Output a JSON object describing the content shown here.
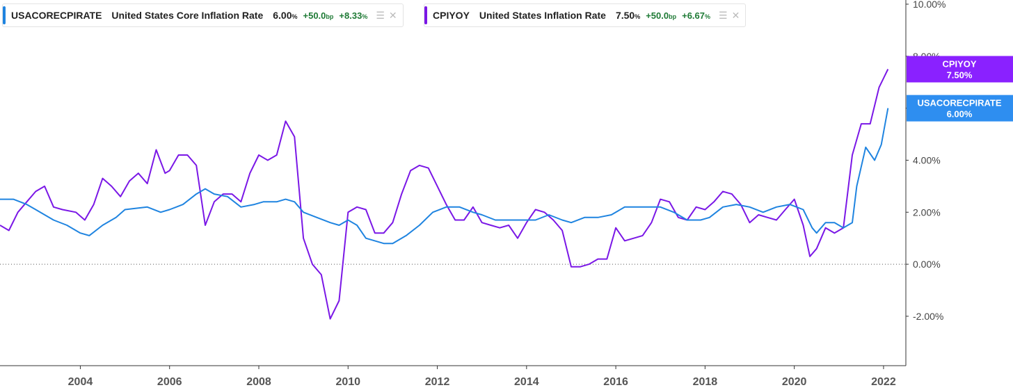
{
  "legend": [
    {
      "ticker": "USACORECPIRATE",
      "name": "United States Core Inflation Rate",
      "value": "6.00",
      "value_unit": "%",
      "change_bp": "+50.0",
      "change_bp_unit": "bp",
      "change_pct": "+8.33",
      "change_pct_unit": "%",
      "color": "#1f84e0"
    },
    {
      "ticker": "CPIYOY",
      "name": "United States Inflation Rate",
      "value": "7.50",
      "value_unit": "%",
      "change_bp": "+50.0",
      "change_bp_unit": "bp",
      "change_pct": "+6.67",
      "change_pct_unit": "%",
      "color": "#7a17e6"
    }
  ],
  "flags": [
    {
      "label": "CPIYOY",
      "value": "7.50%",
      "color": "#8a21ff"
    },
    {
      "label": "USACORECPIRATE",
      "value": "6.00%",
      "color": "#2e8ef0"
    }
  ],
  "chart_data": {
    "type": "line",
    "x_label": "",
    "y_label": "",
    "x_range": [
      2002.2,
      2022.5
    ],
    "y_range": [
      -3.9,
      10.0
    ],
    "y_ticks": [
      {
        "value": 10,
        "label": "10.00%"
      },
      {
        "value": 8,
        "label": "8.00%"
      },
      {
        "value": 6,
        "label": "6.00%"
      },
      {
        "value": 4,
        "label": "4.00%"
      },
      {
        "value": 2,
        "label": "2.00%"
      },
      {
        "value": 0,
        "label": "0.00%"
      },
      {
        "value": -2,
        "label": "-2.00%"
      }
    ],
    "x_ticks": [
      "2004",
      "2006",
      "2008",
      "2010",
      "2012",
      "2014",
      "2016",
      "2018",
      "2020",
      "2022"
    ],
    "zero_line": true,
    "series": [
      {
        "name": "USACORECPIRATE",
        "color": "#1f84e0",
        "points": [
          [
            2002.2,
            2.5
          ],
          [
            2002.5,
            2.5
          ],
          [
            2002.8,
            2.3
          ],
          [
            2003.0,
            2.1
          ],
          [
            2003.4,
            1.7
          ],
          [
            2003.7,
            1.5
          ],
          [
            2004.0,
            1.2
          ],
          [
            2004.2,
            1.1
          ],
          [
            2004.5,
            1.5
          ],
          [
            2004.8,
            1.8
          ],
          [
            2005.0,
            2.1
          ],
          [
            2005.5,
            2.2
          ],
          [
            2005.8,
            2.0
          ],
          [
            2006.0,
            2.1
          ],
          [
            2006.3,
            2.3
          ],
          [
            2006.6,
            2.7
          ],
          [
            2006.8,
            2.9
          ],
          [
            2007.0,
            2.7
          ],
          [
            2007.3,
            2.6
          ],
          [
            2007.6,
            2.2
          ],
          [
            2007.9,
            2.3
          ],
          [
            2008.1,
            2.4
          ],
          [
            2008.4,
            2.4
          ],
          [
            2008.6,
            2.5
          ],
          [
            2008.8,
            2.4
          ],
          [
            2009.0,
            2.0
          ],
          [
            2009.3,
            1.8
          ],
          [
            2009.6,
            1.6
          ],
          [
            2009.8,
            1.5
          ],
          [
            2010.0,
            1.7
          ],
          [
            2010.2,
            1.5
          ],
          [
            2010.4,
            1.0
          ],
          [
            2010.8,
            0.8
          ],
          [
            2011.0,
            0.8
          ],
          [
            2011.3,
            1.1
          ],
          [
            2011.6,
            1.5
          ],
          [
            2011.9,
            2.0
          ],
          [
            2012.2,
            2.2
          ],
          [
            2012.5,
            2.2
          ],
          [
            2012.8,
            2.0
          ],
          [
            2013.0,
            1.9
          ],
          [
            2013.3,
            1.7
          ],
          [
            2013.6,
            1.7
          ],
          [
            2013.9,
            1.7
          ],
          [
            2014.2,
            1.7
          ],
          [
            2014.5,
            1.9
          ],
          [
            2014.8,
            1.7
          ],
          [
            2015.0,
            1.6
          ],
          [
            2015.3,
            1.8
          ],
          [
            2015.6,
            1.8
          ],
          [
            2015.9,
            1.9
          ],
          [
            2016.2,
            2.2
          ],
          [
            2016.5,
            2.2
          ],
          [
            2016.8,
            2.2
          ],
          [
            2017.0,
            2.2
          ],
          [
            2017.3,
            2.0
          ],
          [
            2017.6,
            1.7
          ],
          [
            2017.9,
            1.7
          ],
          [
            2018.1,
            1.8
          ],
          [
            2018.4,
            2.2
          ],
          [
            2018.7,
            2.3
          ],
          [
            2019.0,
            2.2
          ],
          [
            2019.3,
            2.0
          ],
          [
            2019.6,
            2.2
          ],
          [
            2019.9,
            2.3
          ],
          [
            2020.2,
            2.1
          ],
          [
            2020.4,
            1.4
          ],
          [
            2020.5,
            1.2
          ],
          [
            2020.7,
            1.6
          ],
          [
            2020.9,
            1.6
          ],
          [
            2021.1,
            1.4
          ],
          [
            2021.3,
            1.6
          ],
          [
            2021.4,
            3.0
          ],
          [
            2021.6,
            4.5
          ],
          [
            2021.8,
            4.0
          ],
          [
            2021.95,
            4.6
          ],
          [
            2022.1,
            6.0
          ]
        ]
      },
      {
        "name": "CPIYOY",
        "color": "#7a17e6",
        "points": [
          [
            2002.2,
            1.5
          ],
          [
            2002.4,
            1.3
          ],
          [
            2002.6,
            2.0
          ],
          [
            2002.8,
            2.4
          ],
          [
            2003.0,
            2.8
          ],
          [
            2003.2,
            3.0
          ],
          [
            2003.4,
            2.2
          ],
          [
            2003.6,
            2.1
          ],
          [
            2003.9,
            2.0
          ],
          [
            2004.1,
            1.7
          ],
          [
            2004.3,
            2.3
          ],
          [
            2004.5,
            3.3
          ],
          [
            2004.7,
            3.0
          ],
          [
            2004.9,
            2.6
          ],
          [
            2005.1,
            3.2
          ],
          [
            2005.3,
            3.5
          ],
          [
            2005.5,
            3.1
          ],
          [
            2005.7,
            4.4
          ],
          [
            2005.9,
            3.5
          ],
          [
            2006.0,
            3.6
          ],
          [
            2006.2,
            4.2
          ],
          [
            2006.4,
            4.2
          ],
          [
            2006.6,
            3.8
          ],
          [
            2006.8,
            1.5
          ],
          [
            2007.0,
            2.4
          ],
          [
            2007.2,
            2.7
          ],
          [
            2007.4,
            2.7
          ],
          [
            2007.6,
            2.4
          ],
          [
            2007.8,
            3.5
          ],
          [
            2008.0,
            4.2
          ],
          [
            2008.2,
            4.0
          ],
          [
            2008.4,
            4.2
          ],
          [
            2008.6,
            5.5
          ],
          [
            2008.8,
            4.9
          ],
          [
            2009.0,
            1.0
          ],
          [
            2009.2,
            0.0
          ],
          [
            2009.4,
            -0.4
          ],
          [
            2009.6,
            -2.1
          ],
          [
            2009.8,
            -1.4
          ],
          [
            2010.0,
            2.0
          ],
          [
            2010.2,
            2.2
          ],
          [
            2010.4,
            2.1
          ],
          [
            2010.6,
            1.2
          ],
          [
            2010.8,
            1.2
          ],
          [
            2011.0,
            1.6
          ],
          [
            2011.2,
            2.7
          ],
          [
            2011.4,
            3.6
          ],
          [
            2011.6,
            3.8
          ],
          [
            2011.8,
            3.7
          ],
          [
            2012.0,
            3.0
          ],
          [
            2012.2,
            2.3
          ],
          [
            2012.4,
            1.7
          ],
          [
            2012.6,
            1.7
          ],
          [
            2012.8,
            2.2
          ],
          [
            2013.0,
            1.6
          ],
          [
            2013.2,
            1.5
          ],
          [
            2013.4,
            1.4
          ],
          [
            2013.6,
            1.5
          ],
          [
            2013.8,
            1.0
          ],
          [
            2014.0,
            1.6
          ],
          [
            2014.2,
            2.1
          ],
          [
            2014.4,
            2.0
          ],
          [
            2014.6,
            1.7
          ],
          [
            2014.8,
            1.3
          ],
          [
            2015.0,
            -0.1
          ],
          [
            2015.2,
            -0.1
          ],
          [
            2015.4,
            0.0
          ],
          [
            2015.6,
            0.2
          ],
          [
            2015.8,
            0.2
          ],
          [
            2016.0,
            1.4
          ],
          [
            2016.2,
            0.9
          ],
          [
            2016.4,
            1.0
          ],
          [
            2016.6,
            1.1
          ],
          [
            2016.8,
            1.6
          ],
          [
            2017.0,
            2.5
          ],
          [
            2017.2,
            2.4
          ],
          [
            2017.4,
            1.8
          ],
          [
            2017.6,
            1.7
          ],
          [
            2017.8,
            2.2
          ],
          [
            2018.0,
            2.1
          ],
          [
            2018.2,
            2.4
          ],
          [
            2018.4,
            2.8
          ],
          [
            2018.6,
            2.7
          ],
          [
            2018.8,
            2.3
          ],
          [
            2019.0,
            1.6
          ],
          [
            2019.2,
            1.9
          ],
          [
            2019.4,
            1.8
          ],
          [
            2019.6,
            1.7
          ],
          [
            2019.8,
            2.1
          ],
          [
            2020.0,
            2.5
          ],
          [
            2020.2,
            1.5
          ],
          [
            2020.35,
            0.3
          ],
          [
            2020.5,
            0.6
          ],
          [
            2020.7,
            1.4
          ],
          [
            2020.9,
            1.2
          ],
          [
            2021.1,
            1.4
          ],
          [
            2021.3,
            4.2
          ],
          [
            2021.5,
            5.4
          ],
          [
            2021.7,
            5.4
          ],
          [
            2021.9,
            6.8
          ],
          [
            2022.1,
            7.5
          ]
        ]
      }
    ]
  }
}
